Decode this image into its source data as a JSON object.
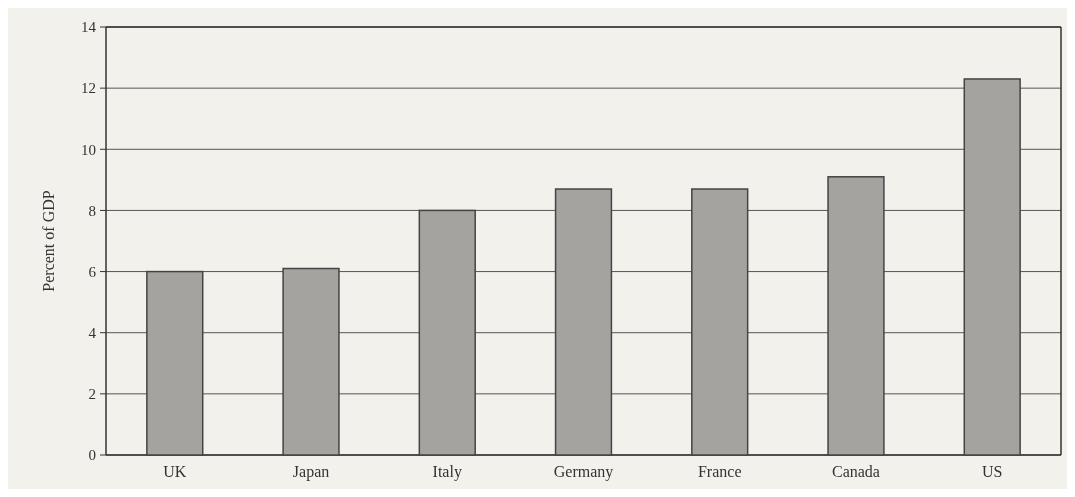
{
  "chart_data": {
    "type": "bar",
    "ylabel": "Percent of GDP",
    "categories": [
      "UK",
      "Japan",
      "Italy",
      "Germany",
      "France",
      "Canada",
      "US"
    ],
    "values": [
      6.0,
      6.1,
      8.0,
      8.7,
      8.7,
      9.1,
      12.3
    ],
    "color": "#a5a39f",
    "ylim": [
      0,
      14
    ],
    "yticks": [
      0,
      2,
      4,
      6,
      8,
      10,
      12,
      14
    ],
    "grid": "y"
  }
}
